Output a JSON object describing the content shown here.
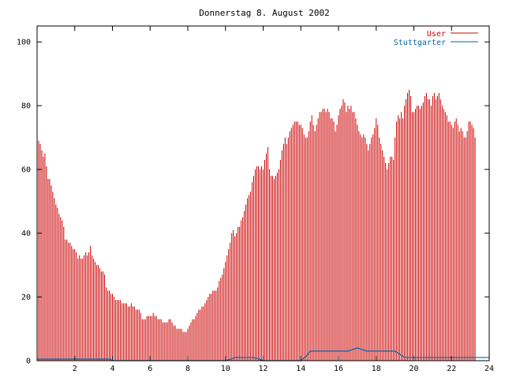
{
  "chart_data": {
    "type": "bar",
    "title": "Donnerstag 8. August 2002",
    "xlabel": "",
    "ylabel": "",
    "xlim": [
      0,
      24
    ],
    "ylim": [
      0,
      105
    ],
    "xticks": [
      2,
      4,
      6,
      8,
      10,
      12,
      14,
      16,
      18,
      20,
      22,
      24
    ],
    "yticks": [
      0,
      20,
      40,
      60,
      80,
      100
    ],
    "grid": false,
    "legend_position": "top-right",
    "series": [
      {
        "name": "User",
        "color": "#cc0000",
        "step_hours": 0.0833333,
        "values": [
          74,
          69,
          68,
          66,
          64,
          65,
          61,
          57,
          57,
          55,
          53,
          51,
          49,
          48,
          46,
          45,
          44,
          42,
          38,
          38,
          37,
          37,
          36,
          35,
          35,
          34,
          32,
          33,
          32,
          32,
          33,
          34,
          33,
          34,
          36,
          33,
          32,
          31,
          30,
          30,
          29,
          28,
          28,
          27,
          23,
          22,
          22,
          21,
          21,
          20,
          19,
          19,
          19,
          19,
          18,
          18,
          18,
          18,
          17,
          17,
          18,
          17,
          17,
          16,
          16,
          16,
          15,
          13,
          13,
          13,
          14,
          14,
          14,
          14,
          15,
          14,
          14,
          13,
          13,
          13,
          12,
          12,
          12,
          12,
          13,
          13,
          12,
          11,
          11,
          10,
          10,
          10,
          10,
          9,
          9,
          9,
          10,
          11,
          12,
          13,
          13,
          14,
          15,
          16,
          16,
          17,
          17,
          18,
          19,
          20,
          21,
          21,
          22,
          22,
          22,
          23,
          25,
          26,
          27,
          29,
          31,
          33,
          35,
          37,
          40,
          41,
          39,
          40,
          42,
          42,
          44,
          45,
          47,
          49,
          51,
          52,
          53,
          56,
          58,
          60,
          61,
          61,
          60,
          61,
          60,
          63,
          65,
          67,
          60,
          58,
          58,
          57,
          58,
          59,
          60,
          63,
          66,
          68,
          70,
          68,
          70,
          72,
          73,
          74,
          75,
          75,
          75,
          74,
          74,
          73,
          71,
          70,
          70,
          72,
          75,
          77,
          74,
          72,
          74,
          76,
          78,
          78,
          79,
          79,
          78,
          79,
          78,
          76,
          76,
          75,
          72,
          74,
          77,
          79,
          80,
          82,
          81,
          78,
          80,
          79,
          80,
          78,
          78,
          76,
          74,
          72,
          71,
          70,
          71,
          70,
          68,
          66,
          68,
          70,
          71,
          73,
          76,
          74,
          70,
          68,
          66,
          64,
          62,
          60,
          62,
          64,
          64,
          63,
          70,
          75,
          77,
          76,
          78,
          76,
          80,
          82,
          84,
          85,
          83,
          78,
          78,
          79,
          80,
          80,
          79,
          80,
          81,
          83,
          84,
          82,
          82,
          80,
          83,
          84,
          82,
          83,
          84,
          82,
          80,
          79,
          78,
          77,
          75,
          75,
          74,
          73,
          75,
          76,
          74,
          72,
          73,
          72,
          70,
          70,
          72,
          75,
          75,
          74,
          73,
          70
        ]
      },
      {
        "name": "Stuttgarter",
        "color": "#0066aa",
        "x": [
          0,
          0.5,
          1.0,
          1.5,
          2.0,
          2.5,
          3.0,
          3.5,
          3.9,
          4.0,
          10.0,
          10.3,
          10.5,
          11.5,
          11.8,
          12.0,
          14.0,
          14.3,
          14.5,
          16.0,
          16.5,
          17.0,
          17.5,
          18.0,
          19.0,
          19.5,
          21.0,
          22.0,
          23.0,
          24.0
        ],
        "values": [
          0.5,
          0.5,
          0.5,
          0.5,
          0.5,
          0.5,
          0.5,
          0.5,
          0.5,
          0,
          0,
          0.5,
          1.0,
          1.0,
          0.5,
          0,
          0,
          1.5,
          3.0,
          3.0,
          3.0,
          4.0,
          3.0,
          3.0,
          3.0,
          1.0,
          1.0,
          1.0,
          1.0,
          1.0
        ]
      }
    ]
  }
}
